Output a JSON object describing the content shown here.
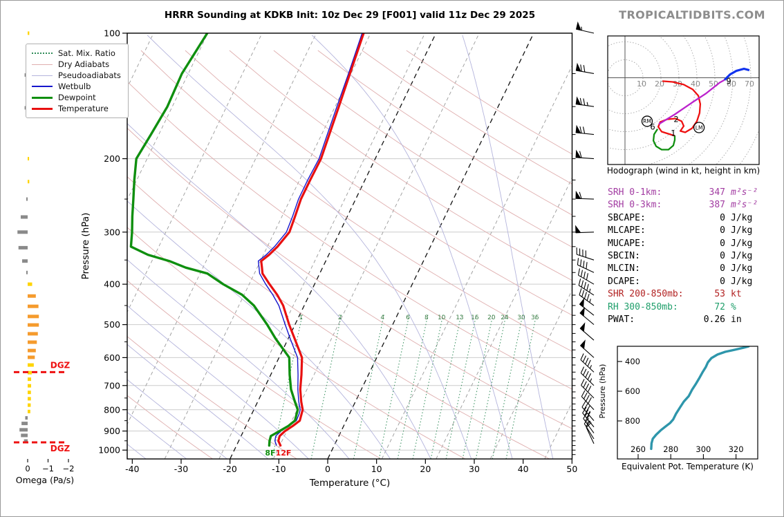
{
  "title": "HRRR Sounding at KDKB Init: 10z Dec 29 [F001] valid 11z Dec 29 2025",
  "watermark": "TROPICALTIDBITS.COM",
  "colors": {
    "temperature": "#e81010",
    "dewpoint": "#0f8f0f",
    "wetbulb": "#1515cc",
    "dry_adiabat": "#dfaeae",
    "pseudoadiabat": "#b4b4dc",
    "mixing_ratio": "#2e8b57",
    "isotherm": "#999999",
    "isotherm_bold": "#111111",
    "grid": "#cccccc",
    "omega_up_strong": "#F59B2D",
    "omega_up_weak": "#FFD400",
    "omega_down": "#8a8a8a",
    "dgz": "#ee1111",
    "theta_e": "#2e96ab",
    "srh_text": "#a23ca2",
    "shr_text": "#b22222",
    "rh_text": "#1e9e6a",
    "hodo_0_1km": "#0f8f0f",
    "hodo_1_6km": "#ee1111",
    "hodo_6_9km": "#bb22cc",
    "hodo_9km_up": "#1133ee"
  },
  "chart_data": [
    {
      "type": "line",
      "name": "skewt_sounding",
      "title": "HRRR Sounding at KDKB",
      "xlabel": "Temperature (°C)",
      "ylabel": "Pressure (hPa)",
      "xlim": [
        -40,
        50
      ],
      "p_ticks": [
        100,
        200,
        300,
        400,
        500,
        600,
        700,
        800,
        900,
        1000
      ],
      "t_ticks": [
        -40,
        -30,
        -20,
        -10,
        0,
        10,
        20,
        30,
        40,
        50
      ],
      "legend_items": [
        "Sat. Mix. Ratio",
        "Dry Adiabats",
        "Pseudoadiabats",
        "Wetbulb",
        "Dewpoint",
        "Temperature"
      ],
      "surface_labels": {
        "dewpoint_f": "8F",
        "temp_f": "12F"
      },
      "mixing_ratio": {
        "values": [
          1,
          2,
          4,
          6,
          8,
          10,
          13,
          16,
          20,
          24,
          30,
          36
        ],
        "anchor_temp_c": [
          -19.1,
          -11.1,
          -2.4,
          2.8,
          6.6,
          9.7,
          13.4,
          16.5,
          19.9,
          22.6,
          26.0,
          28.8
        ]
      },
      "profile": {
        "pressure": [
          100,
          125,
          150,
          175,
          200,
          225,
          250,
          275,
          300,
          325,
          340,
          352,
          365,
          377,
          400,
          424,
          450,
          500,
          540,
          600,
          660,
          715,
          765,
          800,
          820,
          850,
          875,
          900,
          925,
          950,
          975
        ],
        "temperature": [
          -34.8,
          -33.6,
          -32.6,
          -31.8,
          -31.1,
          -31.2,
          -31.2,
          -30.7,
          -30.3,
          -31.3,
          -32.2,
          -33.2,
          -32.4,
          -31.7,
          -29.2,
          -26.6,
          -24.3,
          -21.2,
          -18.7,
          -15.3,
          -13.7,
          -12.5,
          -11.1,
          -10.0,
          -9.8,
          -9.5,
          -10.4,
          -11.5,
          -12.1,
          -11.9,
          -11.0
        ],
        "dewpoint": [
          -66.8,
          -68.0,
          -67.7,
          -68.3,
          -68.9,
          -67.2,
          -65.5,
          -64.0,
          -62.5,
          -61.3,
          -57.0,
          -52.0,
          -48.0,
          -43.0,
          -38.7,
          -33.8,
          -30.3,
          -25.7,
          -22.6,
          -17.9,
          -16.1,
          -14.4,
          -12.4,
          -11.0,
          -10.8,
          -10.5,
          -11.3,
          -12.6,
          -13.9,
          -13.7,
          -13.3
        ],
        "wetbulb": [
          -35.1,
          -33.9,
          -33.0,
          -32.2,
          -31.5,
          -31.7,
          -31.7,
          -31.2,
          -30.9,
          -31.9,
          -32.8,
          -33.8,
          -33.0,
          -32.3,
          -30.0,
          -27.5,
          -25.2,
          -22.0,
          -19.6,
          -16.2,
          -14.4,
          -13.0,
          -11.6,
          -10.5,
          -10.3,
          -10.2,
          -11.2,
          -12.3,
          -12.9,
          -12.6,
          -11.8
        ]
      },
      "wind_barbs_p_dir_kt": [
        [
          100,
          283,
          55
        ],
        [
          125,
          280,
          68
        ],
        [
          150,
          278,
          75
        ],
        [
          175,
          276,
          68
        ],
        [
          200,
          274,
          62
        ],
        [
          250,
          272,
          58
        ],
        [
          300,
          268,
          50
        ],
        [
          350,
          288,
          42
        ],
        [
          375,
          295,
          40
        ],
        [
          400,
          300,
          42
        ],
        [
          425,
          303,
          45
        ],
        [
          450,
          306,
          45
        ],
        [
          475,
          308,
          48
        ],
        [
          500,
          310,
          52
        ],
        [
          545,
          311,
          52
        ],
        [
          600,
          312,
          50
        ],
        [
          650,
          313,
          47
        ],
        [
          700,
          314,
          45
        ],
        [
          750,
          315,
          42
        ],
        [
          800,
          317,
          38
        ],
        [
          850,
          319,
          35
        ],
        [
          880,
          321,
          30
        ],
        [
          910,
          324,
          25
        ],
        [
          940,
          328,
          18
        ],
        [
          965,
          335,
          10
        ]
      ]
    },
    {
      "type": "bar",
      "name": "omega_panel",
      "xlabel": "Omega (Pa/s)",
      "x_ticks": [
        0,
        -1,
        -2
      ],
      "dgz_label": "DGZ",
      "dgz_pressures": [
        650,
        958
      ],
      "pairs_p_omega": [
        [
          100,
          -0.08
        ],
        [
          126,
          0.15
        ],
        [
          151,
          0.15
        ],
        [
          200,
          -0.07
        ],
        [
          227,
          -0.08
        ],
        [
          250,
          0.07
        ],
        [
          276,
          0.34
        ],
        [
          300,
          0.5
        ],
        [
          327,
          0.45
        ],
        [
          352,
          0.27
        ],
        [
          375,
          0.07
        ],
        [
          400,
          -0.22
        ],
        [
          427,
          -0.4
        ],
        [
          452,
          -0.53
        ],
        [
          478,
          -0.55
        ],
        [
          501,
          -0.55
        ],
        [
          526,
          -0.5
        ],
        [
          551,
          -0.45
        ],
        [
          577,
          -0.4
        ],
        [
          599,
          -0.35
        ],
        [
          625,
          -0.3
        ],
        [
          652,
          -0.2
        ],
        [
          676,
          -0.17
        ],
        [
          701,
          -0.17
        ],
        [
          727,
          -0.16
        ],
        [
          753,
          -0.16
        ],
        [
          780,
          -0.15
        ],
        [
          808,
          -0.13
        ],
        [
          837,
          0.12
        ],
        [
          863,
          0.3
        ],
        [
          894,
          0.4
        ],
        [
          922,
          0.33
        ],
        [
          951,
          0.18
        ]
      ]
    },
    {
      "type": "line",
      "name": "hodograph",
      "caption": "Hodograph (wind in kt, height in km)",
      "ring_interval_kt": 10,
      "ring_labels": [
        10,
        20,
        30,
        40,
        50,
        60,
        70
      ],
      "traces_uv_kt": {
        "km0_1": [
          [
            18.1,
            -28.5
          ],
          [
            16.2,
            -31.5
          ],
          [
            15.8,
            -35.0
          ],
          [
            17.3,
            -38.1
          ],
          [
            20.4,
            -40.0
          ],
          [
            24.2,
            -40.0
          ],
          [
            26.9,
            -37.7
          ],
          [
            27.7,
            -34.6
          ],
          [
            27.7,
            -32.3
          ]
        ],
        "km1_6": [
          [
            27.7,
            -32.3
          ],
          [
            24.2,
            -31.2
          ],
          [
            20.4,
            -30.0
          ],
          [
            18.5,
            -27.3
          ],
          [
            19.6,
            -24.6
          ],
          [
            23.5,
            -23.1
          ],
          [
            28.1,
            -22.7
          ],
          [
            31.5,
            -24.2
          ],
          [
            32.7,
            -26.9
          ],
          [
            30.8,
            -29.6
          ],
          [
            33.5,
            -30.4
          ],
          [
            37.3,
            -28.1
          ],
          [
            40.0,
            -24.2
          ],
          [
            41.5,
            -19.6
          ],
          [
            41.9,
            -14.6
          ],
          [
            40.8,
            -10.0
          ],
          [
            37.7,
            -6.5
          ],
          [
            32.7,
            -3.8
          ],
          [
            26.5,
            -2.3
          ],
          [
            20.8,
            -1.9
          ]
        ],
        "km6_9": [
          [
            18.8,
            -25.8
          ],
          [
            27.7,
            -20.4
          ],
          [
            37.3,
            -13.8
          ],
          [
            45.0,
            -8.8
          ],
          [
            52.7,
            -2.7
          ],
          [
            55.4,
            -1.2
          ]
        ],
        "km9_up": [
          [
            55.4,
            -1.2
          ],
          [
            58.5,
            1.9
          ],
          [
            61.9,
            3.8
          ],
          [
            66.2,
            5.0
          ],
          [
            69.2,
            4.2
          ]
        ]
      },
      "height_labels": [
        {
          "text": "1",
          "u": 26.9,
          "v": -30.8
        },
        {
          "text": "2",
          "u": 28.5,
          "v": -23.1
        },
        {
          "text": "6",
          "u": 15.4,
          "v": -27.3
        },
        {
          "text": "9",
          "u": 57.7,
          "v": -1.9
        }
      ],
      "storm_motions": [
        {
          "text": "RM",
          "u": 12.3,
          "v": -24.2
        },
        {
          "text": "LM",
          "u": 41.2,
          "v": -27.7
        }
      ]
    },
    {
      "type": "line",
      "name": "theta_e_panel",
      "xlabel": "Equivalent Pot. Temperature (K)",
      "ylabel": "Pressure (hPa)",
      "x_ticks": [
        260,
        280,
        300,
        320
      ],
      "y_ticks": [
        400,
        600,
        800
      ],
      "curve_K_p": [
        [
          268,
          988
        ],
        [
          268.2,
          950
        ],
        [
          269,
          920
        ],
        [
          271,
          893
        ],
        [
          274,
          862
        ],
        [
          277,
          836
        ],
        [
          279.5,
          815
        ],
        [
          281.5,
          790
        ],
        [
          283.3,
          750
        ],
        [
          285.8,
          707
        ],
        [
          288,
          670
        ],
        [
          291,
          633
        ],
        [
          293,
          591
        ],
        [
          295.2,
          554
        ],
        [
          297.3,
          516
        ],
        [
          299.4,
          474
        ],
        [
          301.5,
          437
        ],
        [
          302.8,
          405
        ],
        [
          304.9,
          377
        ],
        [
          308.7,
          353
        ],
        [
          313.4,
          335
        ],
        [
          319.3,
          321
        ],
        [
          324.8,
          307
        ],
        [
          327.7,
          298
        ]
      ]
    }
  ],
  "parameters": [
    {
      "label": "SRH 0-1km:",
      "value": "347",
      "unit": "m²s⁻²",
      "color_key": "srh_text"
    },
    {
      "label": "SRH 0-3km:",
      "value": "387",
      "unit": "m²s⁻²",
      "color_key": "srh_text"
    },
    {
      "label": "SBCAPE:",
      "value": "0",
      "unit": "J/kg",
      "color_key": "black"
    },
    {
      "label": "MLCAPE:",
      "value": "0",
      "unit": "J/kg",
      "color_key": "black"
    },
    {
      "label": "MUCAPE:",
      "value": "0",
      "unit": "J/kg",
      "color_key": "black"
    },
    {
      "label": "SBCIN:",
      "value": "0",
      "unit": "J/kg",
      "color_key": "black"
    },
    {
      "label": "MLCIN:",
      "value": "0",
      "unit": "J/kg",
      "color_key": "black"
    },
    {
      "label": "DCAPE:",
      "value": "0",
      "unit": "J/kg",
      "color_key": "black"
    },
    {
      "label": "SHR 200-850mb:",
      "value": "53",
      "unit": "kt",
      "color_key": "shr_text"
    },
    {
      "label": "RH 300-850mb:",
      "value": "72",
      "unit": "%",
      "color_key": "rh_text"
    },
    {
      "label": "PWAT:",
      "value": "0.26",
      "unit": "in",
      "color_key": "black"
    }
  ]
}
